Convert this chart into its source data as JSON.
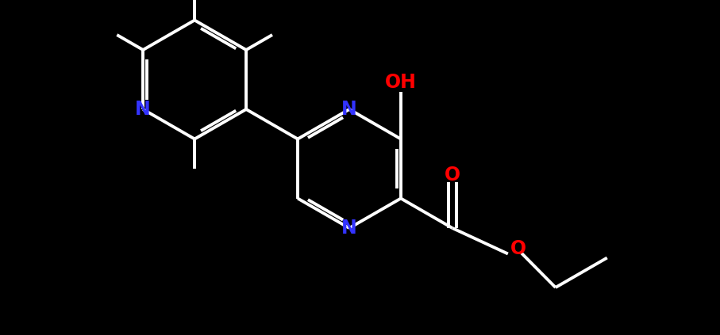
{
  "background_color": "#000000",
  "bond_color": "#ffffff",
  "N_color": "#3333ff",
  "O_color": "#ff0000",
  "font_size_atoms": 17,
  "line_width": 2.8,
  "figsize": [
    9.07,
    4.23
  ],
  "dpi": 100,
  "xlim": [
    0,
    9.07
  ],
  "ylim": [
    0,
    4.23
  ]
}
